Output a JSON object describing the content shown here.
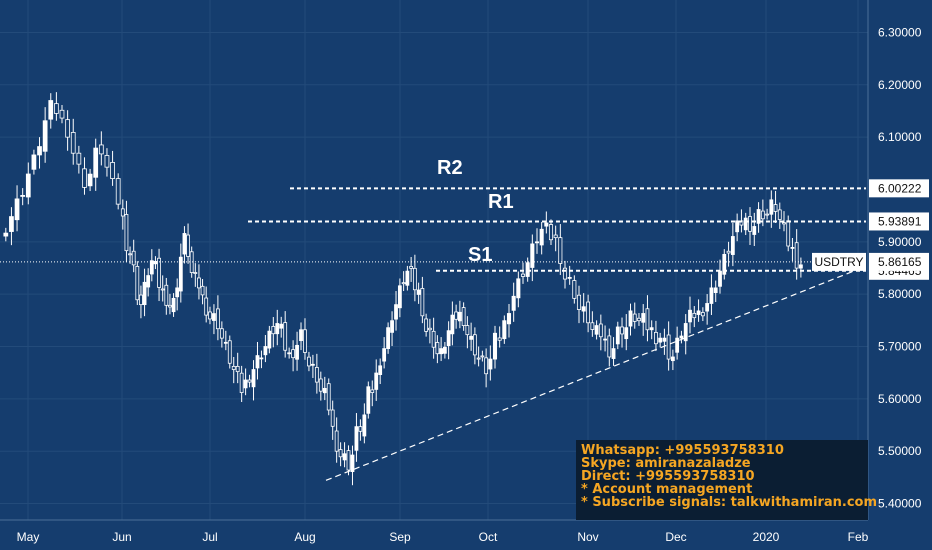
{
  "chart_data": {
    "type": "candlestick",
    "symbol": "USDTRY",
    "last_price": "5.86165",
    "y_ticks": [
      "6.30000",
      "6.20000",
      "6.10000",
      "5.90000",
      "5.80000",
      "5.70000",
      "5.60000",
      "5.50000",
      "5.40000"
    ],
    "x_ticks": [
      "May",
      "Jun",
      "Jul",
      "Aug",
      "Sep",
      "Oct",
      "Nov",
      "Dec",
      "2020",
      "Feb"
    ],
    "ylim": [
      5.38,
      6.32
    ],
    "levels": [
      {
        "name": "R2",
        "value": 6.00222,
        "label": "6.00222"
      },
      {
        "name": "R1",
        "value": 5.93891,
        "label": "5.93891"
      },
      {
        "name": "S1",
        "value": 5.84465,
        "label": "5.84465"
      }
    ],
    "trendline": {
      "from": {
        "date": "Aug 5",
        "value": 5.45
      },
      "to": {
        "date": "Feb 1",
        "value": 5.85
      }
    },
    "series": [
      {
        "x": "May",
        "values": [
          5.97,
          6.05,
          6.15,
          6.12,
          6.02,
          6.08,
          5.98
        ]
      },
      {
        "x": "Jun",
        "values": [
          5.88,
          5.78,
          5.86,
          5.8,
          5.78,
          5.9,
          5.82,
          5.78
        ]
      },
      {
        "x": "Jul",
        "values": [
          5.75,
          5.68,
          5.62,
          5.66,
          5.7,
          5.74,
          5.68,
          5.72
        ]
      },
      {
        "x": "Aug",
        "values": [
          5.65,
          5.6,
          5.52,
          5.48,
          5.55,
          5.62,
          5.7,
          5.78
        ]
      },
      {
        "x": "Sep",
        "values": [
          5.84,
          5.8,
          5.72,
          5.68,
          5.74,
          5.76,
          5.7,
          5.66
        ]
      },
      {
        "x": "Oct",
        "values": [
          5.72,
          5.8,
          5.86,
          5.92,
          5.9,
          5.82,
          5.76
        ]
      },
      {
        "x": "Nov",
        "values": [
          5.72,
          5.7,
          5.74,
          5.76,
          5.74,
          5.72,
          5.68
        ]
      },
      {
        "x": "Dec",
        "values": [
          5.74,
          5.76,
          5.8,
          5.86,
          5.92,
          5.94,
          5.96
        ]
      },
      {
        "x": "2020",
        "values": [
          5.97,
          5.9,
          5.86
        ]
      }
    ]
  },
  "info": {
    "whatsapp": "Whatsapp: +995593758310",
    "skype": "Skype: amiranazaladze",
    "direct": "Direct: +995593758310",
    "account": "* Account management",
    "signals": "* Subscribe signals: talkwithamiran.com"
  }
}
